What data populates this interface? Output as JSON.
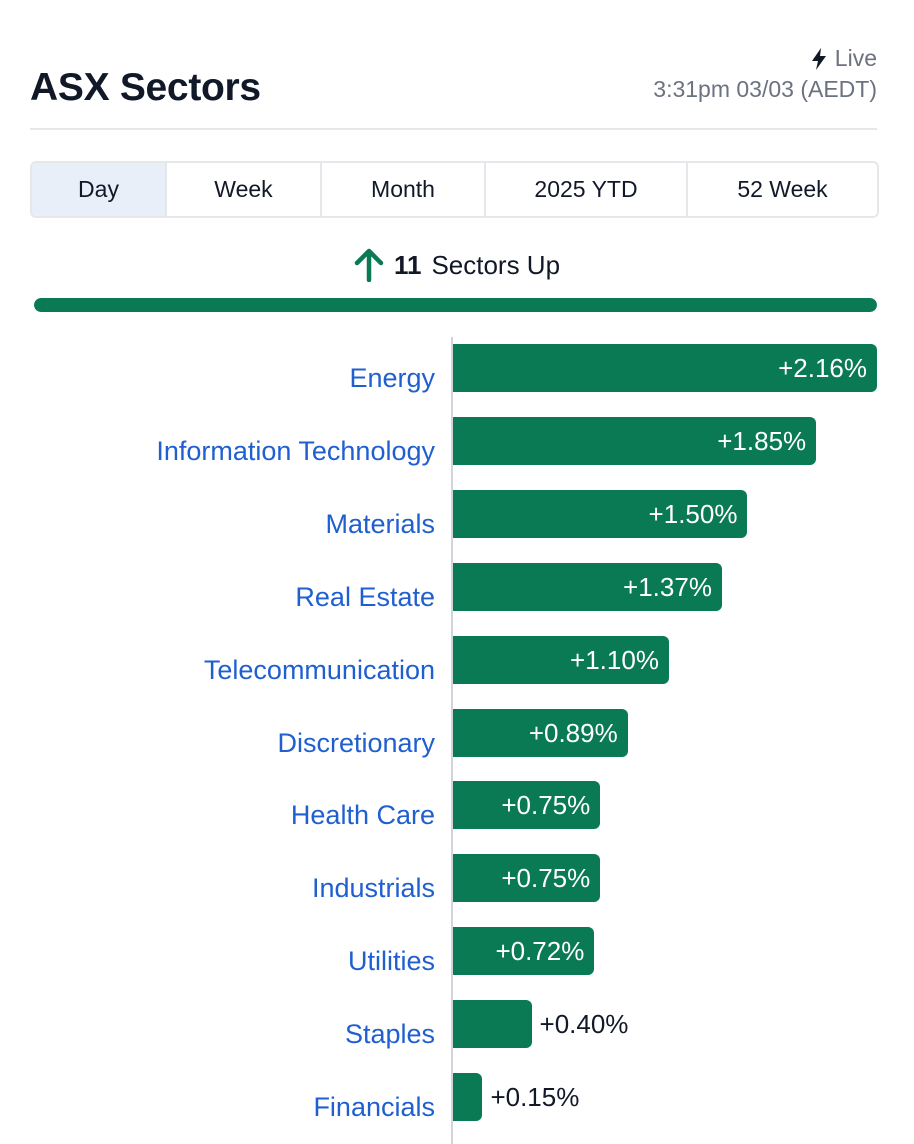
{
  "header": {
    "title": "ASX Sectors",
    "live_label": "Live",
    "timestamp": "3:31pm 03/03 (AEDT)"
  },
  "tabs": [
    {
      "label": "Day",
      "active": true
    },
    {
      "label": "Week",
      "active": false
    },
    {
      "label": "Month",
      "active": false
    },
    {
      "label": "2025 YTD",
      "active": false
    },
    {
      "label": "52 Week",
      "active": false
    }
  ],
  "summary": {
    "count": "11",
    "label": "Sectors Up",
    "sectors_up": 11,
    "sectors_total": 11
  },
  "colors": {
    "bar": "#0a7a55",
    "link": "#1f5fd0",
    "active_tab": "#e8eff9"
  },
  "icons": {
    "live": "lightning-bolt-icon",
    "up": "arrow-up-icon"
  },
  "chart_data": {
    "type": "bar",
    "orientation": "horizontal",
    "categories": [
      "Energy",
      "Information Technology",
      "Materials",
      "Real Estate",
      "Telecommunication",
      "Discretionary",
      "Health Care",
      "Industrials",
      "Utilities",
      "Staples",
      "Financials"
    ],
    "values": [
      2.16,
      1.85,
      1.5,
      1.37,
      1.1,
      0.89,
      0.75,
      0.75,
      0.72,
      0.4,
      0.15
    ],
    "labels": [
      "+2.16%",
      "+1.85%",
      "+1.50%",
      "+1.37%",
      "+1.10%",
      "+0.89%",
      "+0.75%",
      "+0.75%",
      "+0.72%",
      "+0.40%",
      "+0.15%"
    ],
    "xlim": [
      0,
      2.16
    ],
    "grid": false,
    "legend": "none"
  }
}
